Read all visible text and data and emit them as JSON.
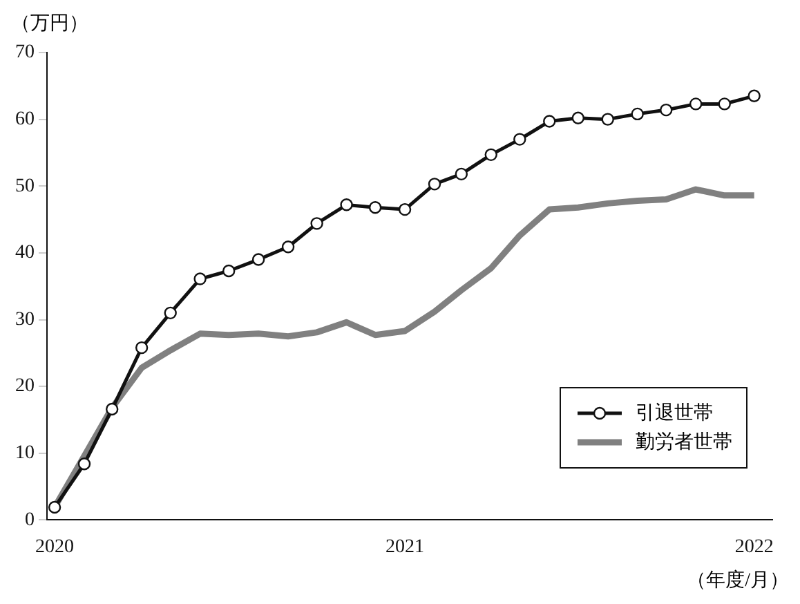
{
  "chart_data": {
    "type": "line",
    "ylabel": "（万円）",
    "xlabel": "（年度/月）",
    "x": [
      "2020-01",
      "2020-02",
      "2020-03",
      "2020-04",
      "2020-05",
      "2020-06",
      "2020-07",
      "2020-08",
      "2020-09",
      "2020-10",
      "2020-11",
      "2020-12",
      "2021-01",
      "2021-02",
      "2021-03",
      "2021-04",
      "2021-05",
      "2021-06",
      "2021-07",
      "2021-08",
      "2021-09",
      "2021-10",
      "2021-11",
      "2021-12",
      "2022-01"
    ],
    "series": [
      {
        "name": "引退世帯",
        "color": "#111111",
        "marker": "circle",
        "values": [
          1.9,
          8.4,
          16.6,
          25.8,
          31.0,
          36.1,
          37.3,
          39.0,
          40.9,
          44.4,
          47.2,
          46.8,
          46.5,
          50.3,
          51.8,
          54.7,
          57.0,
          59.7,
          60.2,
          60.0,
          60.8,
          61.4,
          62.3,
          62.3,
          63.5
        ]
      },
      {
        "name": "勤労者世帯",
        "color": "#808080",
        "marker": "none",
        "values": [
          1.9,
          9.6,
          16.8,
          22.8,
          25.4,
          27.9,
          27.7,
          27.9,
          27.5,
          28.1,
          29.6,
          27.7,
          28.3,
          31.2,
          34.4,
          37.7,
          42.6,
          46.5,
          46.8,
          47.4,
          47.8,
          48.0,
          49.5,
          48.6,
          48.6
        ]
      }
    ],
    "xlim": [
      "2019-12-24",
      "2022-01-20"
    ],
    "xticks": [
      "2020",
      "2021",
      "2022"
    ],
    "ylim": [
      0,
      70
    ],
    "yticks": [
      0,
      10,
      20,
      30,
      40,
      50,
      60,
      70
    ],
    "grid": false,
    "legend": "bottom right",
    "line_style": "solid"
  }
}
